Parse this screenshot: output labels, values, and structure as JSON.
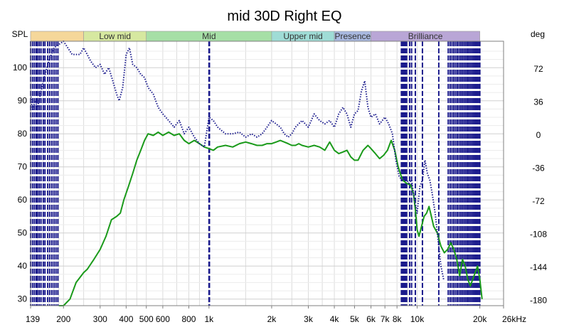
{
  "chart_data": {
    "type": "line",
    "title": "mid 30D Right EQ",
    "y_left_label": "SPL",
    "y_right_label": "deg",
    "x_unit": "kHz",
    "x_scale": "log",
    "xlim": [
      139,
      26000
    ],
    "ylim_left": [
      28,
      108
    ],
    "ylim_right": [
      -186,
      102
    ],
    "grid": true,
    "x_ticks": [
      {
        "v": 139,
        "label": "139"
      },
      {
        "v": 200,
        "label": "200"
      },
      {
        "v": 300,
        "label": "300"
      },
      {
        "v": 400,
        "label": "400"
      },
      {
        "v": 500,
        "label": "500"
      },
      {
        "v": 600,
        "label": "600"
      },
      {
        "v": 800,
        "label": "800"
      },
      {
        "v": 1000,
        "label": "1k"
      },
      {
        "v": 2000,
        "label": "2k"
      },
      {
        "v": 3000,
        "label": "3k"
      },
      {
        "v": 4000,
        "label": "4k"
      },
      {
        "v": 5000,
        "label": "5k"
      },
      {
        "v": 6000,
        "label": "6k"
      },
      {
        "v": 7000,
        "label": "7k"
      },
      {
        "v": 8000,
        "label": "8k"
      },
      {
        "v": 10000,
        "label": "10k"
      },
      {
        "v": 20000,
        "label": "20k"
      },
      {
        "v": 26000,
        "label": "26kHz"
      }
    ],
    "y_left_ticks": [
      30,
      40,
      50,
      60,
      70,
      80,
      90,
      100
    ],
    "y_right_ticks": [
      72,
      36,
      0,
      -36,
      -72,
      -108,
      -144,
      -180
    ],
    "bands": [
      {
        "label": "",
        "from": 139,
        "to": 250,
        "color": "#f5d79a"
      },
      {
        "label": "Low mid",
        "from": 250,
        "to": 500,
        "color": "#d6e8a0"
      },
      {
        "label": "Mid",
        "from": 500,
        "to": 2000,
        "color": "#a6dfa6"
      },
      {
        "label": "Upper mid",
        "from": 2000,
        "to": 4000,
        "color": "#9fdcd6"
      },
      {
        "label": "Presence",
        "from": 4000,
        "to": 6000,
        "color": "#a9b9e0"
      },
      {
        "label": "Brilliance",
        "from": 6000,
        "to": 20000,
        "color": "#b9a6d6"
      }
    ],
    "series": [
      {
        "axis": "left",
        "color": "#1a9a1a",
        "style": "solid",
        "points": [
          [
            190,
            27
          ],
          [
            200,
            28
          ],
          [
            215,
            30
          ],
          [
            230,
            35
          ],
          [
            250,
            38
          ],
          [
            260,
            39
          ],
          [
            280,
            42
          ],
          [
            300,
            45
          ],
          [
            320,
            49
          ],
          [
            340,
            54
          ],
          [
            360,
            55
          ],
          [
            375,
            56
          ],
          [
            390,
            60
          ],
          [
            410,
            64
          ],
          [
            430,
            68
          ],
          [
            450,
            72
          ],
          [
            470,
            75
          ],
          [
            490,
            78
          ],
          [
            510,
            80
          ],
          [
            540,
            79.5
          ],
          [
            570,
            80.5
          ],
          [
            600,
            79.5
          ],
          [
            640,
            80.5
          ],
          [
            680,
            79.5
          ],
          [
            720,
            80
          ],
          [
            760,
            78
          ],
          [
            800,
            77
          ],
          [
            850,
            78
          ],
          [
            900,
            77
          ],
          [
            950,
            76
          ],
          [
            1000,
            75.5
          ],
          [
            1050,
            75
          ],
          [
            1100,
            76
          ],
          [
            1200,
            76.5
          ],
          [
            1300,
            76
          ],
          [
            1400,
            77
          ],
          [
            1500,
            77.5
          ],
          [
            1600,
            77
          ],
          [
            1700,
            76.5
          ],
          [
            1800,
            76.5
          ],
          [
            1900,
            77
          ],
          [
            2000,
            77
          ],
          [
            2100,
            77.5
          ],
          [
            2200,
            78
          ],
          [
            2300,
            77.5
          ],
          [
            2400,
            77
          ],
          [
            2500,
            76.5
          ],
          [
            2600,
            76.5
          ],
          [
            2700,
            77
          ],
          [
            2800,
            76.5
          ],
          [
            3000,
            76
          ],
          [
            3200,
            76.5
          ],
          [
            3400,
            76
          ],
          [
            3600,
            75
          ],
          [
            3800,
            77.5
          ],
          [
            4000,
            75
          ],
          [
            4200,
            74
          ],
          [
            4400,
            74.5
          ],
          [
            4600,
            75
          ],
          [
            4800,
            73
          ],
          [
            5000,
            72
          ],
          [
            5200,
            72
          ],
          [
            5500,
            75
          ],
          [
            5800,
            76.5
          ],
          [
            6000,
            75.5
          ],
          [
            6300,
            74
          ],
          [
            6600,
            72.5
          ],
          [
            6900,
            73.5
          ],
          [
            7200,
            75
          ],
          [
            7500,
            78
          ],
          [
            7800,
            75
          ],
          [
            8100,
            70
          ],
          [
            8500,
            66
          ],
          [
            8900,
            65
          ],
          [
            9300,
            64.5
          ],
          [
            9600,
            62
          ],
          [
            9800,
            57
          ],
          [
            10000,
            51
          ],
          [
            10200,
            49
          ],
          [
            10500,
            52
          ],
          [
            10800,
            55
          ],
          [
            11100,
            56
          ],
          [
            11400,
            58
          ],
          [
            11700,
            55
          ],
          [
            12000,
            52
          ],
          [
            12500,
            50
          ],
          [
            13000,
            46
          ],
          [
            13500,
            44
          ],
          [
            14000,
            45
          ],
          [
            14500,
            47
          ],
          [
            15000,
            45
          ],
          [
            15500,
            42
          ],
          [
            16000,
            37
          ],
          [
            16500,
            42
          ],
          [
            17000,
            40
          ],
          [
            17500,
            36
          ],
          [
            18000,
            34
          ],
          [
            18500,
            36
          ],
          [
            19000,
            38
          ],
          [
            19500,
            40
          ],
          [
            20000,
            36
          ],
          [
            20500,
            30
          ]
        ]
      },
      {
        "axis": "left",
        "color": "#1a1a8c",
        "style": "dotted",
        "points": [
          [
            139,
            92
          ],
          [
            142,
            87
          ],
          [
            146,
            90
          ],
          [
            150,
            88
          ],
          [
            155,
            92
          ],
          [
            160,
            96
          ],
          [
            170,
            102
          ],
          [
            180,
            106
          ],
          [
            200,
            108
          ],
          [
            220,
            104
          ],
          [
            240,
            104
          ],
          [
            250,
            106
          ],
          [
            260,
            104
          ],
          [
            270,
            102
          ],
          [
            285,
            100
          ],
          [
            300,
            101
          ],
          [
            315,
            98
          ],
          [
            330,
            100
          ],
          [
            345,
            96
          ],
          [
            360,
            92
          ],
          [
            370,
            90
          ],
          [
            385,
            94
          ],
          [
            400,
            104
          ],
          [
            415,
            106
          ],
          [
            430,
            101
          ],
          [
            450,
            100
          ],
          [
            470,
            98
          ],
          [
            490,
            97
          ],
          [
            510,
            94
          ],
          [
            540,
            92
          ],
          [
            570,
            88
          ],
          [
            600,
            86
          ],
          [
            640,
            84
          ],
          [
            680,
            82
          ],
          [
            720,
            84
          ],
          [
            760,
            80
          ],
          [
            800,
            82
          ],
          [
            850,
            79
          ],
          [
            900,
            77
          ],
          [
            950,
            76
          ],
          [
            1000,
            85
          ],
          [
            1050,
            84
          ],
          [
            1100,
            82
          ],
          [
            1200,
            80
          ],
          [
            1300,
            80
          ],
          [
            1400,
            80.5
          ],
          [
            1500,
            79
          ],
          [
            1600,
            80
          ],
          [
            1700,
            79
          ],
          [
            1800,
            80
          ],
          [
            1900,
            82
          ],
          [
            2000,
            84
          ],
          [
            2100,
            83
          ],
          [
            2200,
            82
          ],
          [
            2300,
            80
          ],
          [
            2400,
            79
          ],
          [
            2500,
            80
          ],
          [
            2600,
            82
          ],
          [
            2800,
            84
          ],
          [
            3000,
            82
          ],
          [
            3200,
            86
          ],
          [
            3400,
            84
          ],
          [
            3600,
            83
          ],
          [
            3800,
            84
          ],
          [
            4000,
            82
          ],
          [
            4200,
            86
          ],
          [
            4400,
            88
          ],
          [
            4600,
            86
          ],
          [
            4800,
            82
          ],
          [
            5000,
            86
          ],
          [
            5200,
            87
          ],
          [
            5400,
            93
          ],
          [
            5600,
            96
          ],
          [
            5800,
            88
          ],
          [
            6000,
            85
          ],
          [
            6300,
            86
          ],
          [
            6600,
            83
          ],
          [
            7000,
            85
          ],
          [
            7300,
            83
          ],
          [
            7600,
            80
          ],
          [
            7900,
            72
          ],
          [
            8200,
            67
          ],
          [
            8500,
            66
          ],
          [
            8800,
            67
          ],
          [
            9100,
            65
          ],
          [
            9400,
            66
          ],
          [
            9700,
            60
          ],
          [
            10000,
            56
          ],
          [
            10300,
            64
          ],
          [
            10600,
            66
          ],
          [
            10900,
            72
          ],
          [
            11200,
            68
          ],
          [
            11500,
            66
          ],
          [
            11800,
            62
          ],
          [
            12200,
            56
          ],
          [
            12600,
            48
          ],
          [
            13000,
            40
          ],
          [
            13400,
            36
          ]
        ]
      }
    ],
    "phase_lines_x": [
      139,
      142,
      145,
      148,
      150,
      153,
      156,
      160,
      163,
      168,
      172,
      176,
      180,
      184,
      188,
      1000,
      1005,
      8400,
      8500,
      8600,
      8700,
      8750,
      8800,
      8900,
      9200,
      9400,
      9800,
      10600,
      12700,
      14100,
      14400,
      14700,
      15000,
      15300,
      15600,
      15900,
      16200,
      16500,
      16800,
      17100,
      17400,
      17700,
      18000,
      18300,
      18600,
      18900,
      19200,
      19500,
      19800,
      20000
    ],
    "phase_color": "#1a1a8c"
  }
}
